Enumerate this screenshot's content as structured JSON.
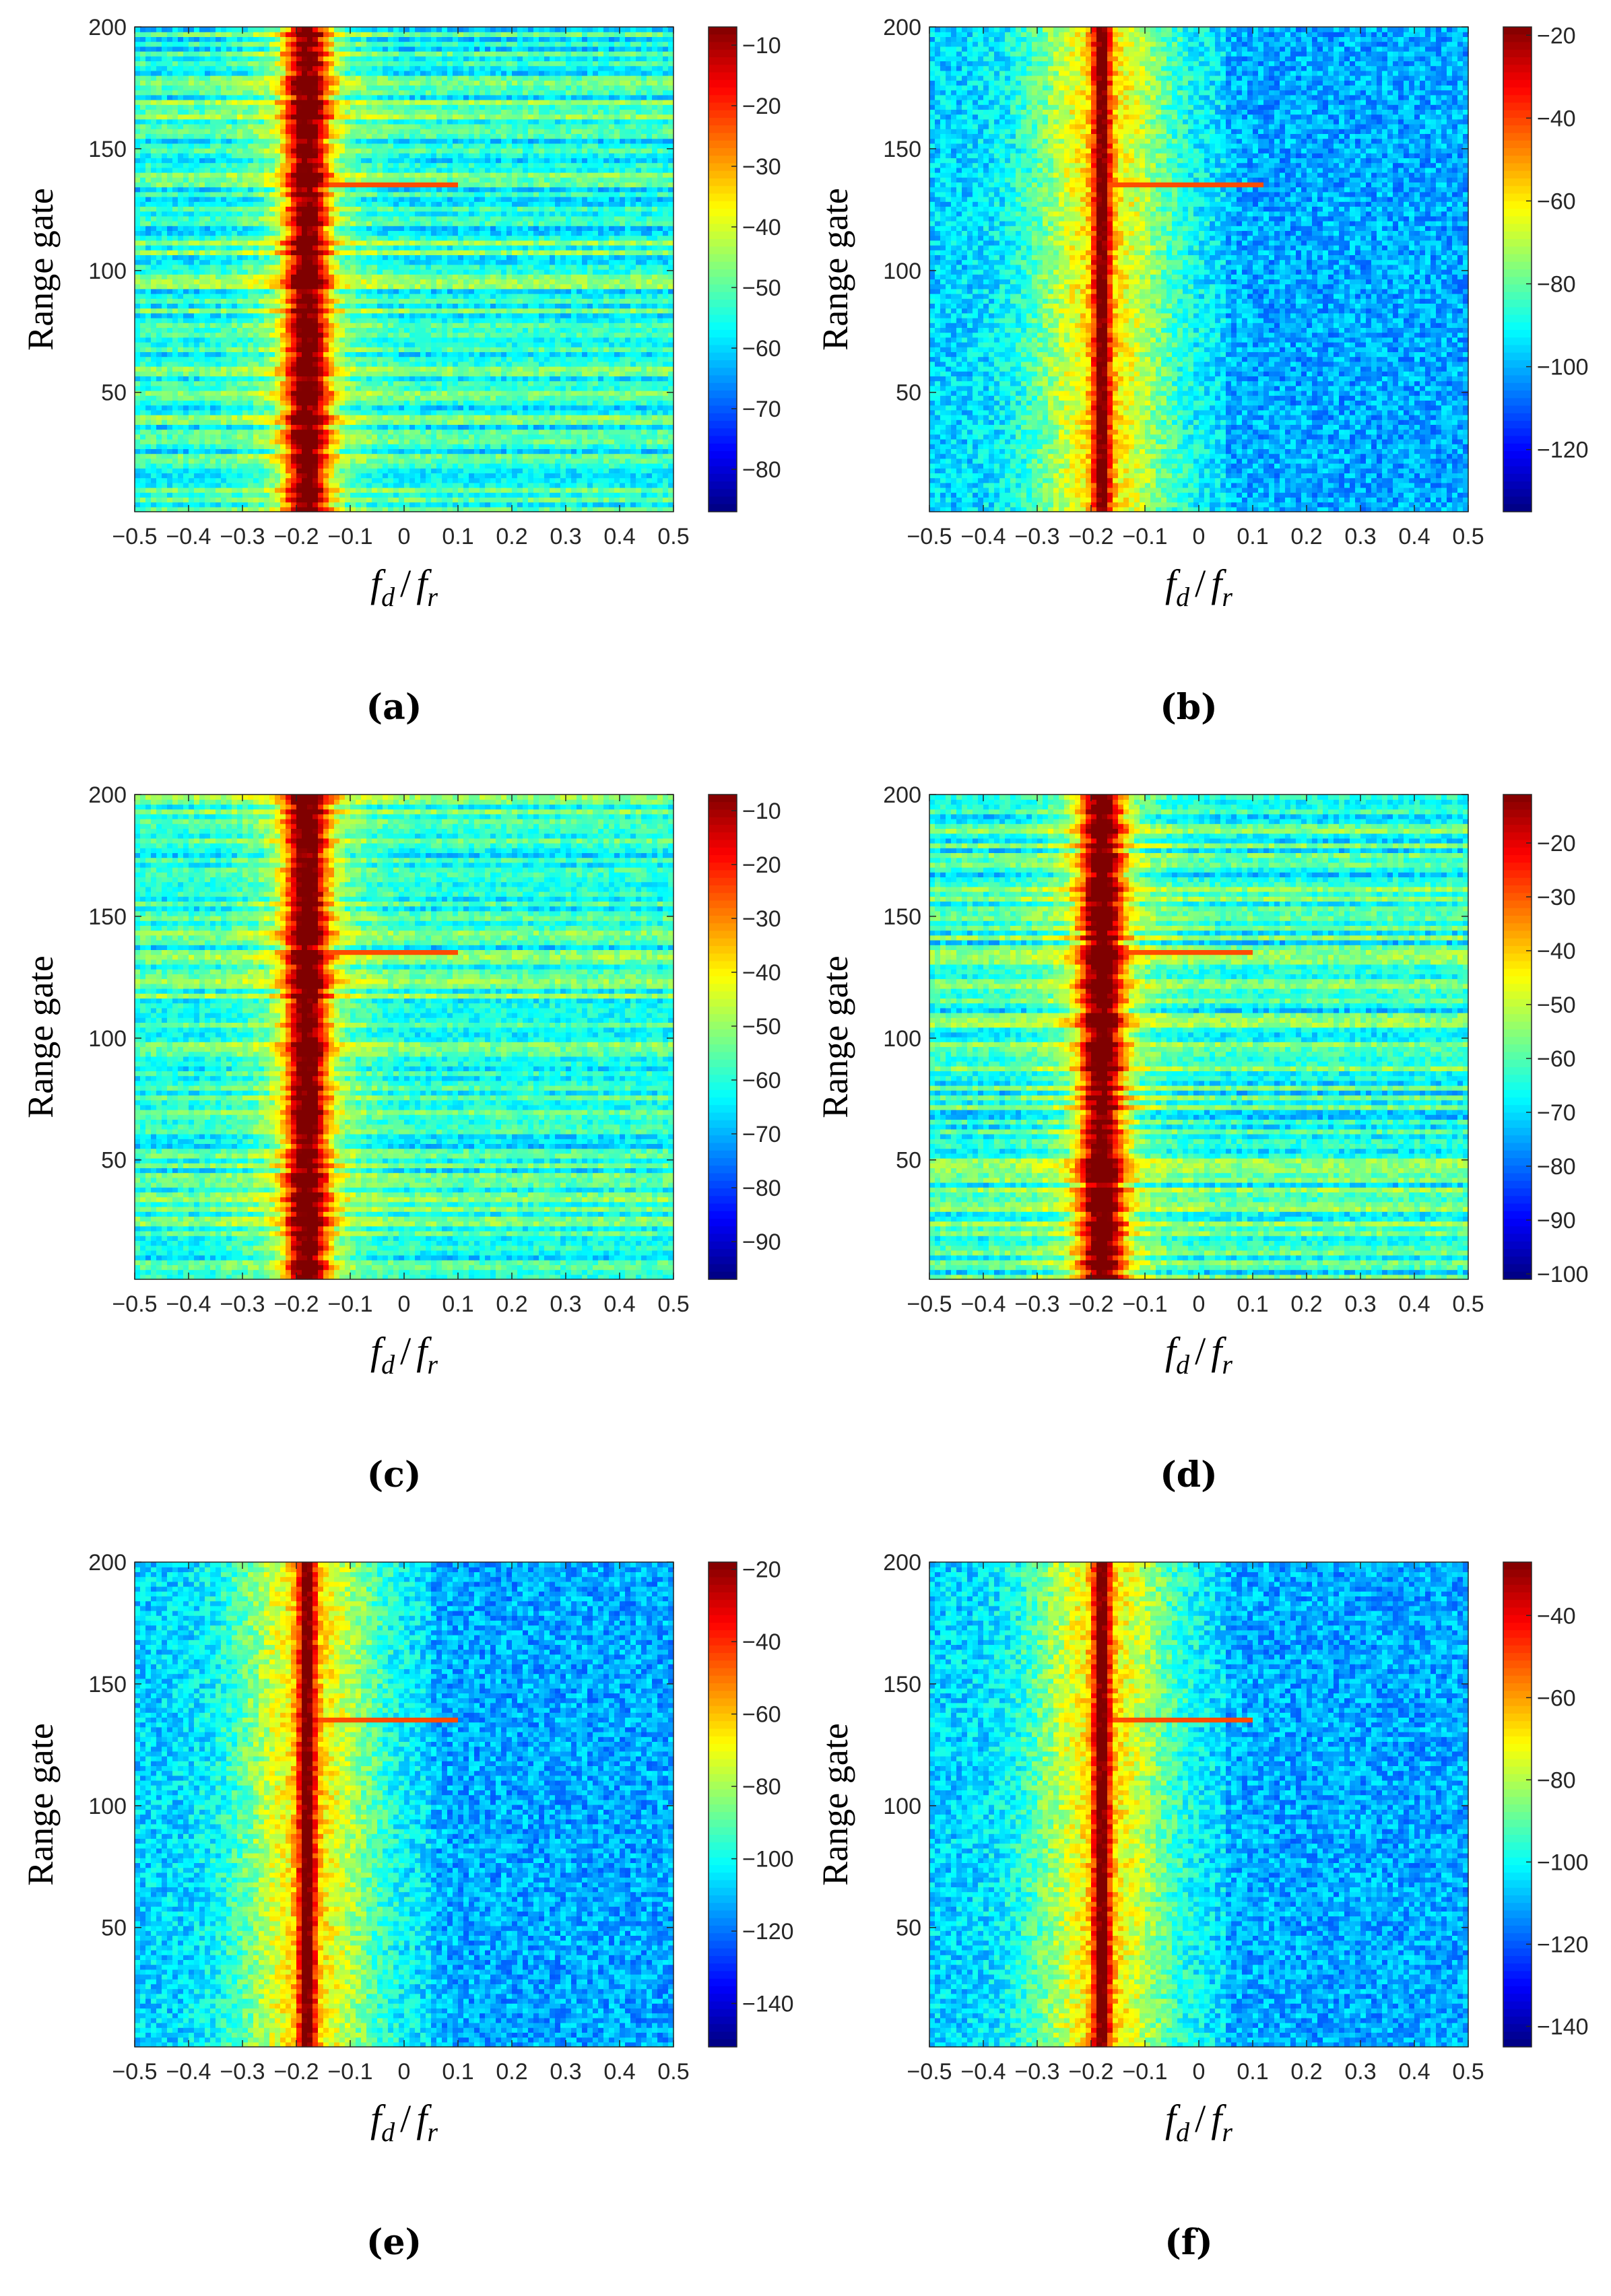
{
  "chart_data": [
    {
      "type": "heatmap",
      "panel": "a",
      "panel_label": "(a)",
      "ylabel": "Range gate",
      "xlabel_num": "f",
      "xlabel_num_sub": "d",
      "xlabel_den": "f",
      "xlabel_den_sub": "r",
      "xlim": [
        -0.5,
        0.5
      ],
      "ylim": [
        1,
        200
      ],
      "xticks": [
        "−0.5",
        "−0.4",
        "−0.3",
        "−0.2",
        "−0.1",
        "0",
        "0.1",
        "0.2",
        "0.3",
        "0.4",
        "0.5"
      ],
      "yticks": [
        "50",
        "100",
        "150",
        "200"
      ],
      "colorbar_range": [
        -87,
        -7
      ],
      "colorbar_ticks": [
        "−10",
        "−20",
        "−30",
        "−40",
        "−50",
        "−60",
        "−70",
        "−80"
      ],
      "colormap": "jet",
      "clutter_center": -0.18,
      "background": "striped",
      "target_row": 135,
      "target_x_end": 0.1
    },
    {
      "type": "heatmap",
      "panel": "b",
      "panel_label": "(b)",
      "ylabel": "Range gate",
      "xlabel_num": "f",
      "xlabel_num_sub": "d",
      "xlabel_den": "f",
      "xlabel_den_sub": "r",
      "xlim": [
        -0.5,
        0.5
      ],
      "ylim": [
        1,
        200
      ],
      "xticks": [
        "−0.5",
        "−0.4",
        "−0.3",
        "−0.2",
        "−0.1",
        "0",
        "0.1",
        "0.2",
        "0.3",
        "0.4",
        "0.5"
      ],
      "yticks": [
        "50",
        "100",
        "150",
        "200"
      ],
      "colorbar_range": [
        -135,
        -18
      ],
      "colorbar_ticks": [
        "−20",
        "−40",
        "−60",
        "−80",
        "−100",
        "−120"
      ],
      "colormap": "jet",
      "clutter_center": -0.18,
      "background": "noise",
      "target_row": 135,
      "target_x_end": 0.12
    },
    {
      "type": "heatmap",
      "panel": "c",
      "panel_label": "(c)",
      "ylabel": "Range gate",
      "xlabel_num": "f",
      "xlabel_num_sub": "d",
      "xlabel_den": "f",
      "xlabel_den_sub": "r",
      "xlim": [
        -0.5,
        0.5
      ],
      "ylim": [
        1,
        200
      ],
      "xticks": [
        "−0.5",
        "−0.4",
        "−0.3",
        "−0.2",
        "−0.1",
        "0",
        "0.1",
        "0.2",
        "0.3",
        "0.4",
        "0.5"
      ],
      "yticks": [
        "50",
        "100",
        "150",
        "200"
      ],
      "colorbar_range": [
        -97,
        -7
      ],
      "colorbar_ticks": [
        "−10",
        "−20",
        "−30",
        "−40",
        "−50",
        "−60",
        "−70",
        "−80",
        "−90"
      ],
      "colormap": "jet",
      "clutter_center": -0.18,
      "background": "striped",
      "target_row": 135,
      "target_x_end": 0.1
    },
    {
      "type": "heatmap",
      "panel": "d",
      "panel_label": "(d)",
      "ylabel": "Range gate",
      "xlabel_num": "f",
      "xlabel_num_sub": "d",
      "xlabel_den": "f",
      "xlabel_den_sub": "r",
      "xlim": [
        -0.5,
        0.5
      ],
      "ylim": [
        1,
        200
      ],
      "xticks": [
        "−0.5",
        "−0.4",
        "−0.3",
        "−0.2",
        "−0.1",
        "0",
        "0.1",
        "0.2",
        "0.3",
        "0.4",
        "0.5"
      ],
      "yticks": [
        "50",
        "100",
        "150",
        "200"
      ],
      "colorbar_range": [
        -101,
        -11
      ],
      "colorbar_ticks": [
        "−20",
        "−30",
        "−40",
        "−50",
        "−60",
        "−70",
        "−80",
        "−90",
        "−100"
      ],
      "colormap": "jet",
      "clutter_center": -0.18,
      "background": "striped",
      "target_row": 135,
      "target_x_end": 0.1
    },
    {
      "type": "heatmap",
      "panel": "e",
      "panel_label": "(e)",
      "ylabel": "Range gate",
      "xlabel_num": "f",
      "xlabel_num_sub": "d",
      "xlabel_den": "f",
      "xlabel_den_sub": "r",
      "xlim": [
        -0.5,
        0.5
      ],
      "ylim": [
        1,
        200
      ],
      "xticks": [
        "−0.5",
        "−0.4",
        "−0.3",
        "−0.2",
        "−0.1",
        "0",
        "0.1",
        "0.2",
        "0.3",
        "0.4",
        "0.5"
      ],
      "yticks": [
        "50",
        "100",
        "150",
        "200"
      ],
      "colorbar_range": [
        -152,
        -18
      ],
      "colorbar_ticks": [
        "−20",
        "−40",
        "−60",
        "−80",
        "−100",
        "−120",
        "−140"
      ],
      "colormap": "jet",
      "clutter_center": -0.18,
      "background": "noise",
      "target_row": 135,
      "target_x_end": 0.1
    },
    {
      "type": "heatmap",
      "panel": "f",
      "panel_label": "(f)",
      "ylabel": "Range gate",
      "xlabel_num": "f",
      "xlabel_num_sub": "d",
      "xlabel_den": "f",
      "xlabel_den_sub": "r",
      "xlim": [
        -0.5,
        0.5
      ],
      "ylim": [
        1,
        200
      ],
      "xticks": [
        "−0.5",
        "−0.4",
        "−0.3",
        "−0.2",
        "−0.1",
        "0",
        "0.1",
        "0.2",
        "0.3",
        "0.4",
        "0.5"
      ],
      "yticks": [
        "50",
        "100",
        "150",
        "200"
      ],
      "colorbar_range": [
        -145,
        -27
      ],
      "colorbar_ticks": [
        "−40",
        "−60",
        "−80",
        "−100",
        "−120",
        "−140"
      ],
      "colormap": "jet",
      "clutter_center": -0.18,
      "background": "noise",
      "target_row": 135,
      "target_x_end": 0.1
    }
  ]
}
